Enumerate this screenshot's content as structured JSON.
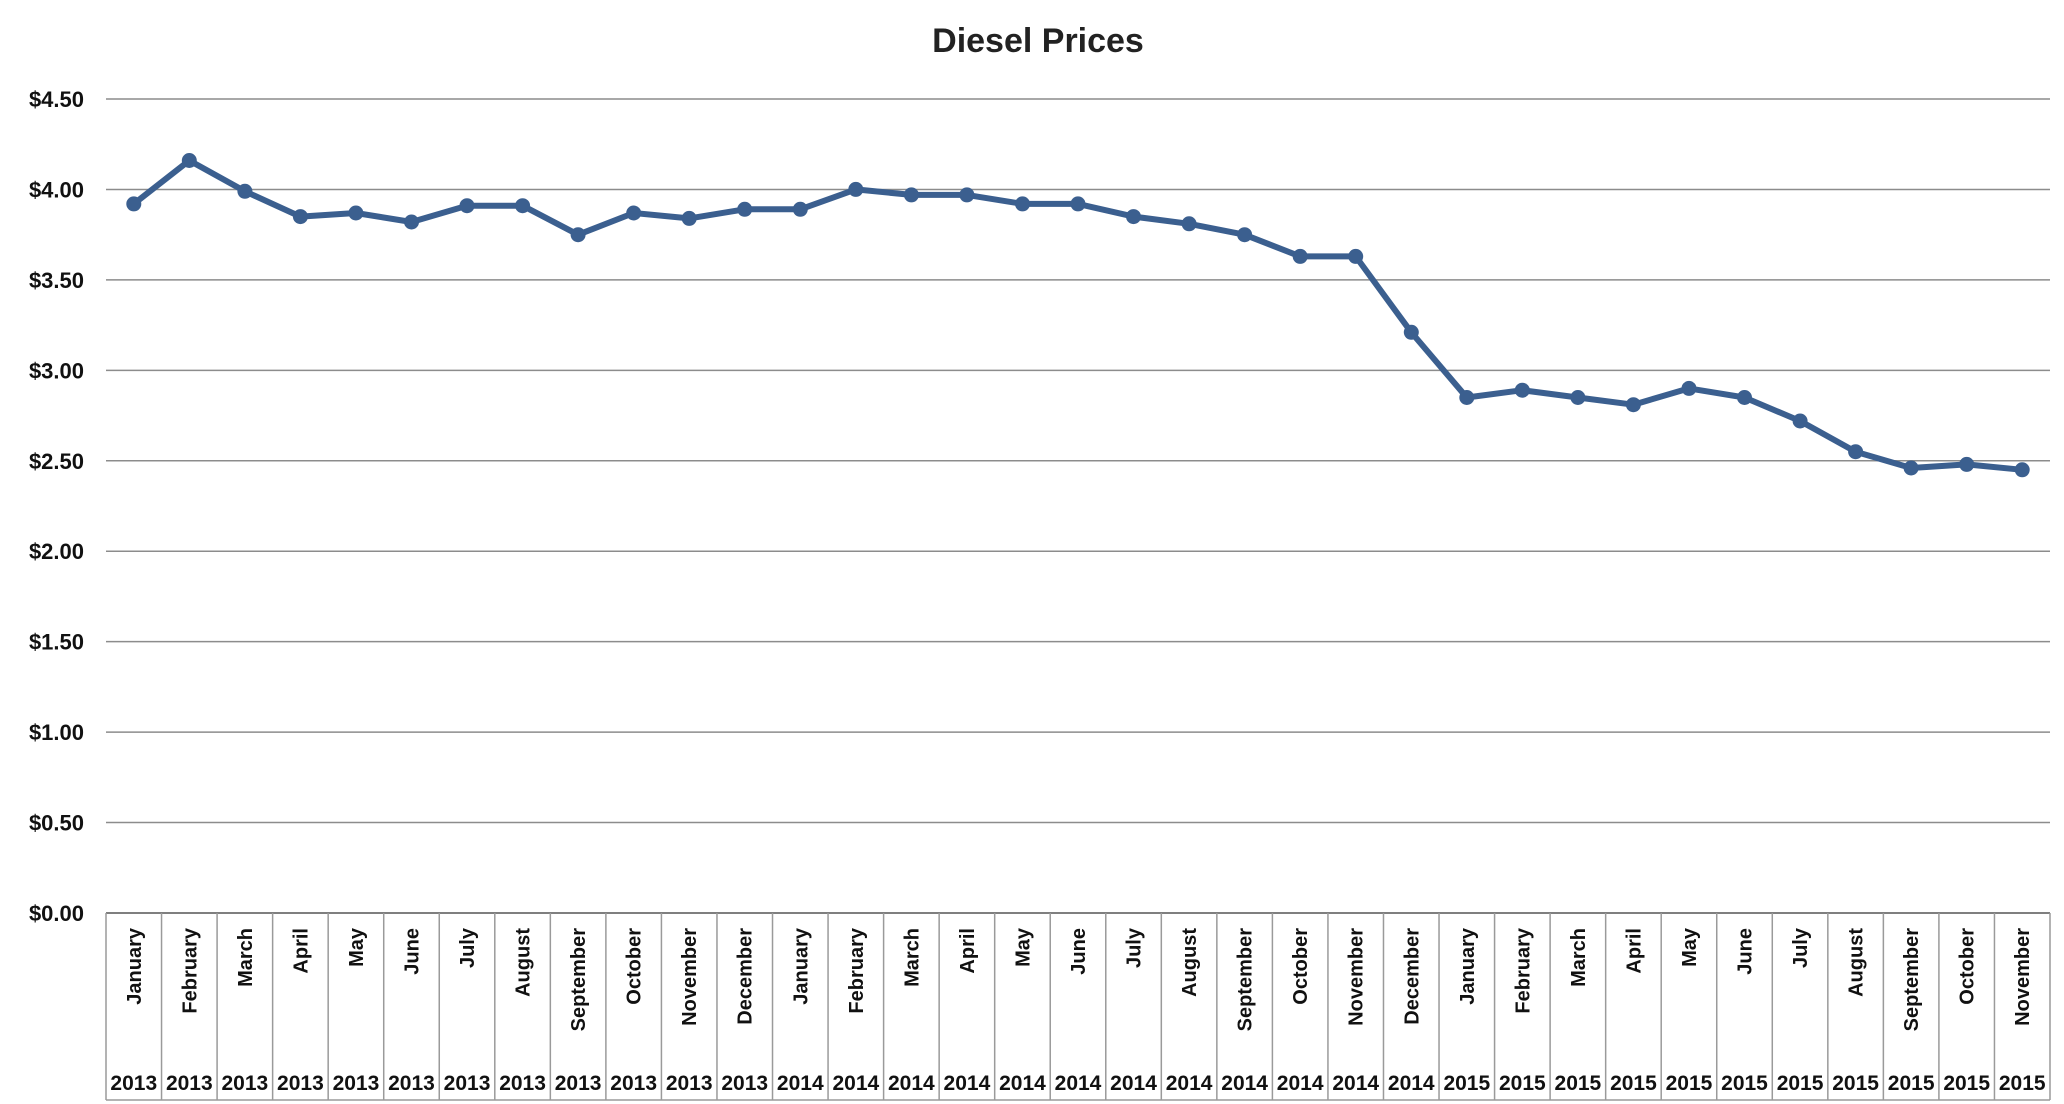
{
  "chart_data": {
    "type": "line",
    "title": "Diesel Prices",
    "xlabel": "",
    "ylabel": "",
    "ylim": [
      0,
      4.5
    ],
    "y_ticks": [
      "$0.00",
      "$0.50",
      "$1.00",
      "$1.50",
      "$2.00",
      "$2.50",
      "$3.00",
      "$3.50",
      "$4.00",
      "$4.50"
    ],
    "grid": true,
    "legend": "none",
    "categories": [
      {
        "month": "January",
        "year": "2013"
      },
      {
        "month": "February",
        "year": "2013"
      },
      {
        "month": "March",
        "year": "2013"
      },
      {
        "month": "April",
        "year": "2013"
      },
      {
        "month": "May",
        "year": "2013"
      },
      {
        "month": "June",
        "year": "2013"
      },
      {
        "month": "July",
        "year": "2013"
      },
      {
        "month": "August",
        "year": "2013"
      },
      {
        "month": "September",
        "year": "2013"
      },
      {
        "month": "October",
        "year": "2013"
      },
      {
        "month": "November",
        "year": "2013"
      },
      {
        "month": "December",
        "year": "2013"
      },
      {
        "month": "January",
        "year": "2014"
      },
      {
        "month": "February",
        "year": "2014"
      },
      {
        "month": "March",
        "year": "2014"
      },
      {
        "month": "April",
        "year": "2014"
      },
      {
        "month": "May",
        "year": "2014"
      },
      {
        "month": "June",
        "year": "2014"
      },
      {
        "month": "July",
        "year": "2014"
      },
      {
        "month": "August",
        "year": "2014"
      },
      {
        "month": "September",
        "year": "2014"
      },
      {
        "month": "October",
        "year": "2014"
      },
      {
        "month": "November",
        "year": "2014"
      },
      {
        "month": "December",
        "year": "2014"
      },
      {
        "month": "January",
        "year": "2015"
      },
      {
        "month": "February",
        "year": "2015"
      },
      {
        "month": "March",
        "year": "2015"
      },
      {
        "month": "April",
        "year": "2015"
      },
      {
        "month": "May",
        "year": "2015"
      },
      {
        "month": "June",
        "year": "2015"
      },
      {
        "month": "July",
        "year": "2015"
      },
      {
        "month": "August",
        "year": "2015"
      },
      {
        "month": "September",
        "year": "2015"
      },
      {
        "month": "October",
        "year": "2015"
      },
      {
        "month": "November",
        "year": "2015"
      }
    ],
    "series": [
      {
        "values": [
          3.92,
          4.16,
          3.99,
          3.85,
          3.87,
          3.82,
          3.91,
          3.91,
          3.75,
          3.87,
          3.84,
          3.89,
          3.89,
          4.0,
          3.97,
          3.97,
          3.92,
          3.92,
          3.85,
          3.81,
          3.75,
          3.63,
          3.63,
          3.21,
          2.85,
          2.89,
          2.85,
          2.81,
          2.9,
          2.85,
          2.72,
          2.55,
          2.46,
          2.48,
          2.45
        ],
        "color": "#3b5f8f"
      }
    ]
  }
}
